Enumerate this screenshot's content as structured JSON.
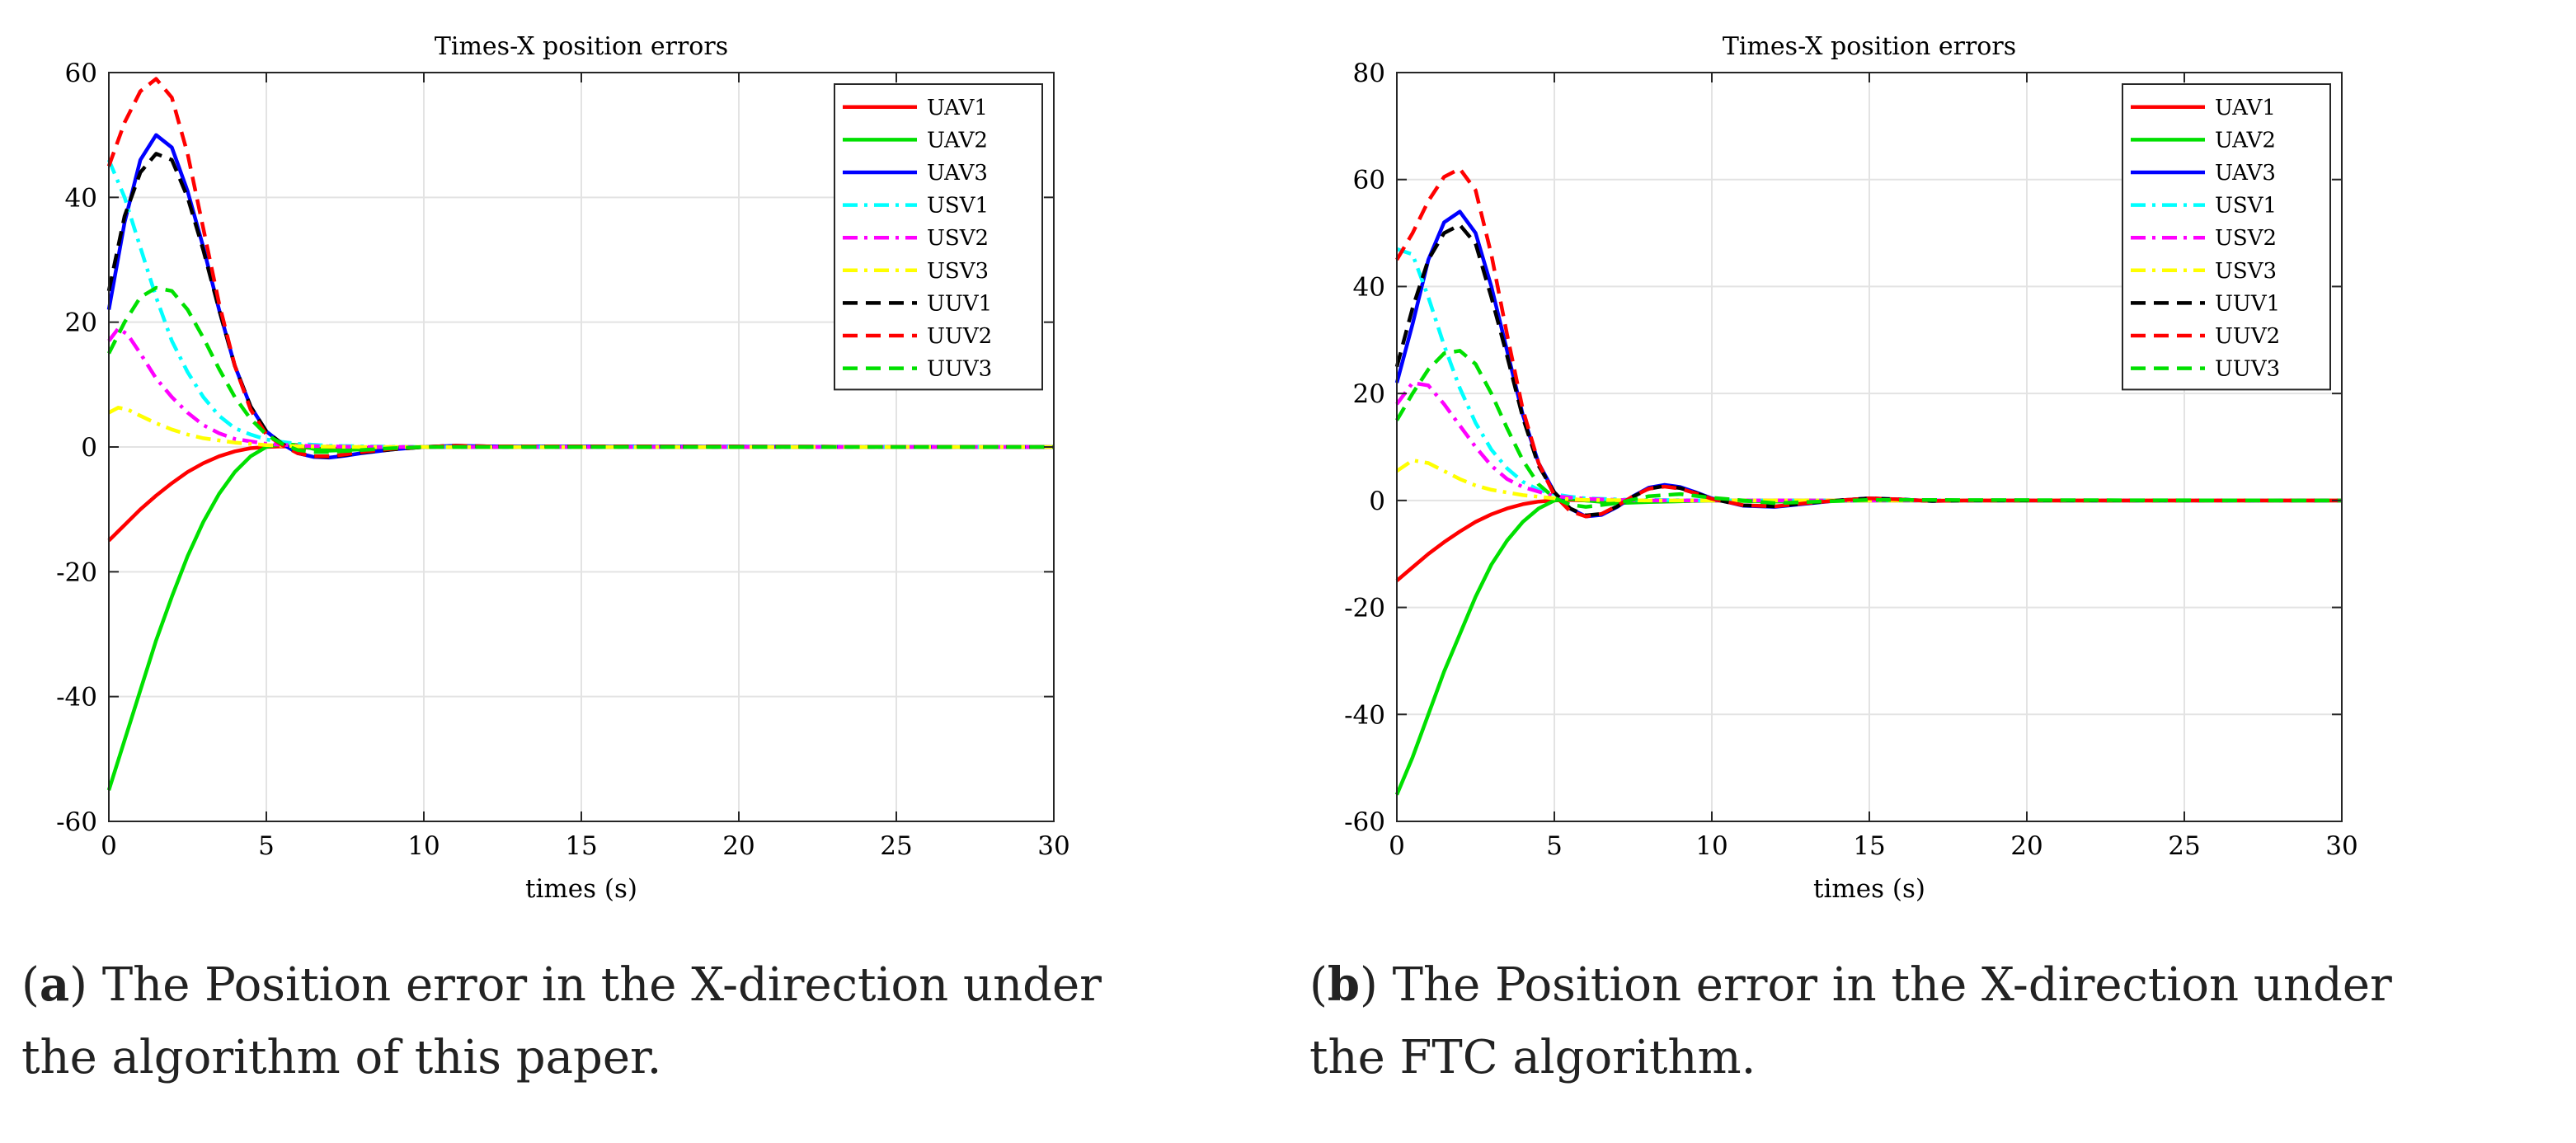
{
  "chart_data": [
    {
      "type": "line",
      "title": "Times-X position errors",
      "xlabel": "times (s)",
      "ylabel": "",
      "xlim": [
        0,
        30
      ],
      "ylim": [
        -60,
        60
      ],
      "xticks": [
        0,
        5,
        10,
        15,
        20,
        25,
        30
      ],
      "yticks": [
        -60,
        -40,
        -20,
        0,
        20,
        40,
        60
      ],
      "xtick_labels": [
        "0",
        "5",
        "10",
        "15",
        "20",
        "25",
        "30"
      ],
      "ytick_labels": [
        "-60",
        "-40",
        "-20",
        "0",
        "20",
        "40",
        "60"
      ],
      "grid": true,
      "legend_position": "top-right",
      "series": [
        {
          "name": "UAV1",
          "color": "#ff0000",
          "style": "solid",
          "x": [
            0,
            0.5,
            1,
            1.5,
            2,
            2.5,
            3,
            3.5,
            4,
            4.5,
            5,
            5.5,
            6,
            6.5,
            7,
            8,
            9,
            10,
            12,
            30
          ],
          "y": [
            -15,
            -12.5,
            -10,
            -7.8,
            -5.8,
            -4,
            -2.6,
            -1.5,
            -0.7,
            -0.2,
            0,
            0.1,
            0,
            -0.2,
            -0.3,
            -0.2,
            -0.1,
            0,
            0,
            0
          ]
        },
        {
          "name": "UAV2",
          "color": "#00e000",
          "style": "solid",
          "x": [
            0,
            0.5,
            1,
            1.5,
            2,
            2.5,
            3,
            3.5,
            4,
            4.5,
            5,
            5.5,
            6,
            6.5,
            7,
            8,
            9,
            10,
            12,
            30
          ],
          "y": [
            -55,
            -47,
            -39,
            -31,
            -24,
            -17.5,
            -12,
            -7.5,
            -4,
            -1.5,
            0,
            0.5,
            0.3,
            -0.3,
            -0.6,
            -0.4,
            -0.2,
            0,
            0,
            0
          ]
        },
        {
          "name": "UAV3",
          "color": "#0000ff",
          "style": "solid",
          "x": [
            0,
            0.5,
            1,
            1.5,
            2,
            2.5,
            3,
            3.5,
            4,
            4.5,
            5,
            5.5,
            6,
            6.5,
            7,
            7.5,
            8,
            9,
            10,
            11,
            12,
            30
          ],
          "y": [
            22,
            36,
            46,
            50,
            48,
            41,
            32,
            22,
            13,
            6.5,
            2.5,
            0.5,
            -1,
            -1.6,
            -1.7,
            -1.4,
            -1,
            -0.4,
            0,
            0.2,
            0.1,
            0
          ]
        },
        {
          "name": "USV1",
          "color": "#00ffff",
          "style": "dashdot",
          "x": [
            0,
            0.5,
            1,
            1.5,
            2,
            2.5,
            3,
            3.5,
            4,
            4.5,
            5,
            5.5,
            6,
            7,
            8,
            10,
            30
          ],
          "y": [
            46,
            40,
            32,
            24,
            17,
            12,
            8,
            5,
            3,
            2,
            1.2,
            0.8,
            0.5,
            0.2,
            0.1,
            0,
            0
          ]
        },
        {
          "name": "USV2",
          "color": "#ff00ff",
          "style": "dashdot",
          "x": [
            0,
            0.3,
            0.6,
            1,
            1.5,
            2,
            2.5,
            3,
            3.5,
            4,
            5,
            6,
            7,
            8,
            10,
            30
          ],
          "y": [
            17,
            19,
            18,
            15,
            11,
            8,
            5.5,
            3.5,
            2.2,
            1.3,
            0.5,
            0.2,
            0.1,
            0,
            0,
            0
          ]
        },
        {
          "name": "USV3",
          "color": "#ffff00",
          "style": "dashdot",
          "x": [
            0,
            0.3,
            0.6,
            1,
            1.5,
            2,
            2.5,
            3,
            4,
            5,
            6,
            8,
            10,
            30
          ],
          "y": [
            5.5,
            6.3,
            6,
            5,
            3.8,
            2.8,
            2,
            1.4,
            0.7,
            0.3,
            0.1,
            0,
            0,
            0
          ]
        },
        {
          "name": "UUV1",
          "color": "#000000",
          "style": "dashed",
          "x": [
            0,
            0.5,
            1,
            1.5,
            2,
            2.5,
            3,
            3.5,
            4,
            4.5,
            5,
            5.5,
            6,
            6.5,
            7,
            7.5,
            8,
            9,
            10,
            11,
            12,
            30
          ],
          "y": [
            25,
            37,
            44,
            47,
            46,
            40,
            31.5,
            22,
            13,
            6.5,
            2.5,
            0.5,
            -1,
            -1.5,
            -1.6,
            -1.3,
            -0.9,
            -0.4,
            0,
            0.2,
            0.1,
            0
          ]
        },
        {
          "name": "UUV2",
          "color": "#ff0000",
          "style": "dashed",
          "x": [
            0,
            0.5,
            1,
            1.5,
            2,
            2.5,
            3,
            3.5,
            4,
            4.5,
            5,
            5.5,
            6,
            6.5,
            7,
            7.5,
            8,
            9,
            10,
            11,
            12,
            30
          ],
          "y": [
            45,
            52,
            57,
            59,
            56,
            47,
            35,
            23,
            13,
            6,
            2,
            0.3,
            -1,
            -1.5,
            -1.5,
            -1.2,
            -0.8,
            -0.3,
            0,
            0.2,
            0.1,
            0
          ]
        },
        {
          "name": "UUV3",
          "color": "#00e000",
          "style": "dashed",
          "x": [
            0,
            0.5,
            1,
            1.5,
            2,
            2.5,
            3,
            3.5,
            4,
            4.5,
            5,
            5.5,
            6,
            6.5,
            7,
            8,
            9,
            10,
            12,
            30
          ],
          "y": [
            15,
            20,
            24,
            25.5,
            25,
            22,
            17.5,
            12.5,
            8,
            4.5,
            2,
            0.5,
            -0.5,
            -0.8,
            -0.8,
            -0.5,
            -0.2,
            0,
            0,
            0
          ]
        }
      ]
    },
    {
      "type": "line",
      "title": "Times-X position errors",
      "xlabel": "times (s)",
      "ylabel": "",
      "xlim": [
        0,
        30
      ],
      "ylim": [
        -60,
        80
      ],
      "xticks": [
        0,
        5,
        10,
        15,
        20,
        25,
        30
      ],
      "yticks": [
        -60,
        -40,
        -20,
        0,
        20,
        40,
        60,
        80
      ],
      "xtick_labels": [
        "0",
        "5",
        "10",
        "15",
        "20",
        "25",
        "30"
      ],
      "ytick_labels": [
        "-60",
        "-40",
        "-20",
        "0",
        "20",
        "40",
        "60",
        "80"
      ],
      "grid": true,
      "legend_position": "top-right",
      "series": [
        {
          "name": "UAV1",
          "color": "#ff0000",
          "style": "solid",
          "x": [
            0,
            0.5,
            1,
            1.5,
            2,
            2.5,
            3,
            3.5,
            4,
            4.5,
            5,
            5.5,
            6,
            7,
            8,
            10,
            30
          ],
          "y": [
            -15,
            -12.5,
            -10,
            -7.8,
            -5.8,
            -4,
            -2.6,
            -1.5,
            -0.7,
            -0.2,
            0,
            0.1,
            0,
            -0.2,
            -0.1,
            0,
            0
          ]
        },
        {
          "name": "UAV2",
          "color": "#00e000",
          "style": "solid",
          "x": [
            0,
            0.5,
            1,
            1.5,
            2,
            2.5,
            3,
            3.5,
            4,
            4.5,
            5,
            5.5,
            6,
            7,
            8,
            10,
            12,
            15,
            30
          ],
          "y": [
            -55,
            -48,
            -40,
            -32,
            -25,
            -18,
            -12,
            -7.5,
            -4,
            -1.5,
            0,
            0.3,
            0,
            -0.5,
            -0.3,
            0,
            -0.2,
            0,
            0
          ]
        },
        {
          "name": "UAV3",
          "color": "#0000ff",
          "style": "solid",
          "x": [
            0,
            0.5,
            1,
            1.5,
            2,
            2.5,
            3,
            3.5,
            4,
            4.5,
            5,
            5.5,
            6,
            6.5,
            7,
            7.5,
            8,
            8.5,
            9,
            9.5,
            10,
            11,
            12,
            13,
            14,
            15,
            16,
            17,
            18,
            30
          ],
          "y": [
            22,
            33,
            45,
            52,
            54,
            50,
            40,
            28,
            16,
            7,
            1.5,
            -1.5,
            -3,
            -2.7,
            -1.2,
            0.8,
            2.4,
            2.9,
            2.5,
            1.5,
            0.4,
            -1,
            -1.2,
            -0.6,
            0,
            0.4,
            0.2,
            -0.1,
            0,
            0
          ]
        },
        {
          "name": "USV1",
          "color": "#00ffff",
          "style": "dashdot",
          "x": [
            0,
            0.5,
            1,
            1.5,
            2,
            2.5,
            3,
            3.5,
            4,
            4.5,
            5,
            5.5,
            6,
            7,
            8,
            10,
            30
          ],
          "y": [
            47,
            46,
            38,
            29,
            21,
            14.5,
            9.5,
            6,
            3.5,
            2,
            1.2,
            0.7,
            0.4,
            0.2,
            0.1,
            0,
            0
          ]
        },
        {
          "name": "USV2",
          "color": "#ff00ff",
          "style": "dashdot",
          "x": [
            0,
            0.5,
            1,
            1.5,
            2,
            2.5,
            3,
            3.5,
            4,
            5,
            6,
            7,
            8,
            10,
            30
          ],
          "y": [
            18,
            22,
            21.5,
            18,
            14,
            10,
            6.5,
            4,
            2.5,
            0.8,
            0.3,
            0.1,
            0,
            0,
            0
          ]
        },
        {
          "name": "USV3",
          "color": "#ffff00",
          "style": "dashdot",
          "x": [
            0,
            0.5,
            1,
            1.5,
            2,
            2.5,
            3,
            4,
            5,
            6,
            8,
            10,
            30
          ],
          "y": [
            5.5,
            7.5,
            7,
            5.5,
            4,
            2.8,
            2,
            1,
            0.4,
            0.1,
            0,
            0,
            0
          ]
        },
        {
          "name": "UUV1",
          "color": "#000000",
          "style": "dashed",
          "x": [
            0,
            0.5,
            1,
            1.5,
            2,
            2.5,
            3,
            3.5,
            4,
            4.5,
            5,
            5.5,
            6,
            6.5,
            7,
            7.5,
            8,
            8.5,
            9,
            9.5,
            10,
            11,
            12,
            13,
            14,
            15,
            16,
            17,
            18,
            30
          ],
          "y": [
            25,
            36,
            45,
            50,
            51.5,
            48,
            38,
            27,
            15.5,
            6.5,
            1.5,
            -1.5,
            -2.8,
            -2.5,
            -1.1,
            0.7,
            2.2,
            2.7,
            2.3,
            1.4,
            0.3,
            -0.9,
            -1.1,
            -0.5,
            0,
            0.4,
            0.2,
            -0.1,
            0,
            0
          ]
        },
        {
          "name": "UUV2",
          "color": "#ff0000",
          "style": "dashed",
          "x": [
            0,
            0.5,
            1,
            1.5,
            2,
            2.5,
            3,
            3.5,
            4,
            4.5,
            5,
            5.5,
            6,
            6.5,
            7,
            7.5,
            8,
            8.5,
            9,
            9.5,
            10,
            11,
            12,
            13,
            14,
            15,
            16,
            17,
            18,
            30
          ],
          "y": [
            45,
            50,
            56,
            60.5,
            62,
            58,
            46,
            31,
            17,
            7,
            1,
            -2,
            -3,
            -2.5,
            -1,
            0.8,
            2.2,
            2.6,
            2.2,
            1.3,
            0.3,
            -0.9,
            -1.1,
            -0.5,
            0,
            0.4,
            0.2,
            -0.1,
            0,
            0
          ]
        },
        {
          "name": "UUV3",
          "color": "#00e000",
          "style": "dashed",
          "x": [
            0,
            0.5,
            1,
            1.5,
            2,
            2.5,
            3,
            3.5,
            4,
            4.5,
            5,
            5.5,
            6,
            7,
            8,
            9,
            10,
            12,
            15,
            30
          ],
          "y": [
            15,
            20,
            24.5,
            27.5,
            28,
            25.5,
            20,
            13.5,
            7.5,
            3,
            0.5,
            -0.8,
            -1.2,
            -0.5,
            0.8,
            1.2,
            0.5,
            -0.5,
            0.1,
            0
          ]
        }
      ]
    }
  ],
  "captions": [
    {
      "label": "a",
      "line1": " The Position error in the X-direction under",
      "line2": "the algorithm of this paper."
    },
    {
      "label": "b",
      "line1": " The Position error in the X-direction under",
      "line2": "the FTC algorithm."
    }
  ]
}
